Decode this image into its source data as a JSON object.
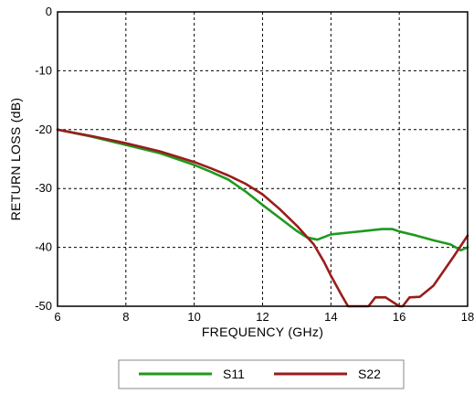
{
  "chart_data": {
    "type": "line",
    "title": "",
    "xlabel": "FREQUENCY (GHz)",
    "ylabel": "RETURN LOSS (dB)",
    "xlim": [
      6,
      18
    ],
    "ylim": [
      -50,
      0
    ],
    "xticks": [
      6,
      8,
      10,
      12,
      14,
      16,
      18
    ],
    "yticks": [
      0,
      -10,
      -20,
      -30,
      -40,
      -50
    ],
    "grid": true,
    "legend_position": "bottom",
    "series": [
      {
        "name": "S11",
        "color": "#1e9a1e",
        "x": [
          6,
          7,
          8,
          9,
          10,
          10.5,
          11,
          11.5,
          12,
          12.5,
          13,
          13.3,
          13.6,
          14,
          14.5,
          15,
          15.5,
          15.8,
          16,
          16.5,
          17,
          17.5,
          17.8,
          18
        ],
        "y": [
          -20,
          -21.2,
          -22.6,
          -24,
          -26,
          -27.2,
          -28.5,
          -30.5,
          -32.8,
          -35,
          -37.2,
          -38.3,
          -38.7,
          -37.8,
          -37.5,
          -37.2,
          -36.9,
          -36.9,
          -37.3,
          -38,
          -38.8,
          -39.5,
          -40.5,
          -40
        ]
      },
      {
        "name": "S22",
        "color": "#9a1c1c",
        "x": [
          6,
          7,
          8,
          9,
          10,
          10.5,
          11,
          11.5,
          12,
          12.5,
          13,
          13.5,
          13.8,
          14,
          14.3,
          14.5,
          14.6,
          14.9,
          15.1,
          15.3,
          15.6,
          16,
          16.1,
          16.3,
          16.6,
          17,
          17.3,
          17.6,
          18
        ],
        "y": [
          -20,
          -21.1,
          -22.3,
          -23.7,
          -25.5,
          -26.6,
          -27.8,
          -29.2,
          -31,
          -33.5,
          -36.3,
          -39.5,
          -42.5,
          -44.8,
          -48,
          -50,
          -50,
          -50,
          -50,
          -48.5,
          -48.5,
          -50,
          -50,
          -48.5,
          -48.4,
          -46.5,
          -44,
          -41.5,
          -38
        ]
      }
    ]
  }
}
